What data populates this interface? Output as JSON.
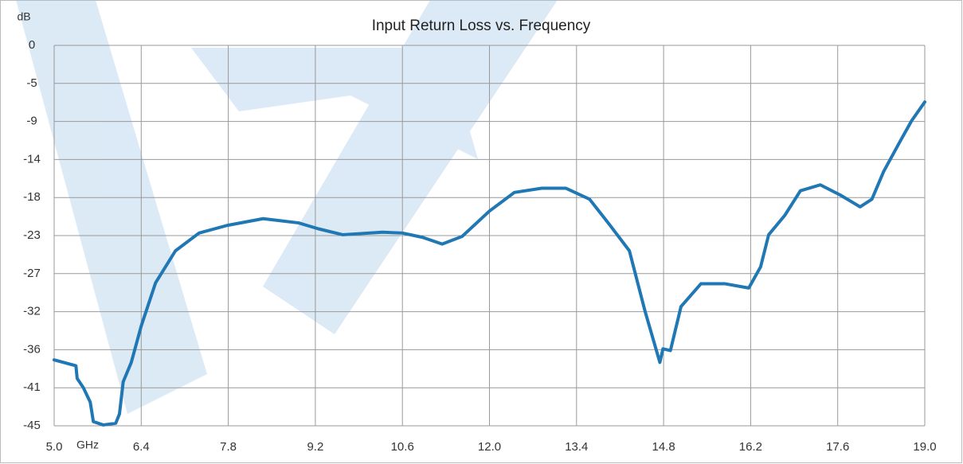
{
  "chart_data": {
    "type": "line",
    "title": "Input Return Loss vs. Frequency",
    "xlabel": "GHz",
    "ylabel": "dB",
    "xlim": [
      5,
      19
    ],
    "xticks": [
      {
        "value": 5,
        "label": "5.0"
      },
      6.4,
      7.8,
      9.2,
      10.6,
      {
        "value": 12,
        "label": "12.0"
      },
      13.4,
      14.8,
      16.2,
      17.6,
      {
        "value": 19,
        "label": "19.0"
      }
    ],
    "ylim": [
      -45,
      0
    ],
    "yticks": [
      0,
      {
        "value": -4.5,
        "label": "-5"
      },
      -9,
      {
        "value": -13.5,
        "label": "-14"
      },
      -18,
      {
        "value": -22.5,
        "label": "-23"
      },
      -27,
      {
        "value": -31.5,
        "label": "-32"
      },
      -36,
      {
        "value": -40.5,
        "label": "-41"
      },
      -45
    ],
    "grid": true,
    "series": [
      {
        "color": "#1f77b4",
        "x": [
          5.0,
          5.35,
          5.37,
          5.47,
          5.58,
          5.63,
          5.79,
          5.99,
          6.05,
          6.11,
          6.24,
          6.4,
          6.63,
          6.95,
          7.33,
          7.78,
          8.36,
          8.93,
          9.25,
          9.64,
          10.28,
          10.6,
          10.92,
          11.24,
          11.56,
          12.0,
          12.4,
          12.84,
          13.23,
          13.61,
          13.93,
          14.25,
          14.5,
          14.74,
          14.79,
          14.91,
          15.08,
          15.27,
          15.4,
          15.79,
          16.17,
          16.36,
          16.49,
          16.75,
          17.0,
          17.32,
          17.64,
          17.96,
          18.15,
          18.34,
          18.6,
          18.79,
          19.0
        ],
        "values": [
          -37.2,
          -37.9,
          -39.4,
          -40.5,
          -42.2,
          -44.5,
          -44.9,
          -44.7,
          -43.6,
          -39.8,
          -37.5,
          -33.2,
          -28.1,
          -24.3,
          -22.2,
          -21.3,
          -20.5,
          -21.0,
          -21.7,
          -22.4,
          -22.1,
          -22.2,
          -22.7,
          -23.5,
          -22.6,
          -19.6,
          -17.4,
          -16.9,
          -16.9,
          -18.2,
          -21.2,
          -24.3,
          -31.4,
          -37.5,
          -35.9,
          -36.1,
          -30.9,
          -29.3,
          -28.2,
          -28.2,
          -28.7,
          -26.2,
          -22.4,
          -20.1,
          -17.2,
          -16.5,
          -17.7,
          -19.1,
          -18.2,
          -14.9,
          -11.4,
          -8.9,
          -6.7
        ]
      }
    ]
  }
}
